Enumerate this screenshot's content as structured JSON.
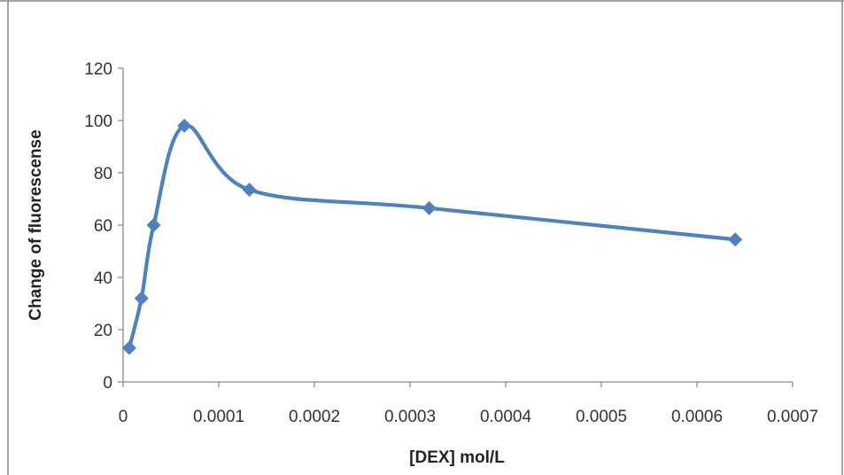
{
  "chart_data": {
    "type": "line",
    "title": "",
    "xlabel": "[DEX] mol/L",
    "ylabel": "Change of fluorescense",
    "xlim": [
      0,
      0.0007
    ],
    "ylim": [
      0,
      120
    ],
    "x_ticks": [
      "0",
      "0.0001",
      "0.0002",
      "0.0003",
      "0.0004",
      "0.0005",
      "0.0006",
      "0.0007"
    ],
    "y_ticks": [
      "0",
      "20",
      "40",
      "60",
      "80",
      "100",
      "120"
    ],
    "grid": false,
    "legend": "none",
    "line_style": "smoothed",
    "marker": "diamond",
    "series_color": "#4F81BD",
    "series": [
      {
        "x": [
          6.4e-06,
          1.92e-05,
          3.2e-05,
          6.4e-05,
          0.000132,
          0.00032,
          0.00064
        ],
        "y": [
          13,
          32,
          60,
          98,
          73.5,
          66.5,
          54.5
        ]
      }
    ]
  }
}
